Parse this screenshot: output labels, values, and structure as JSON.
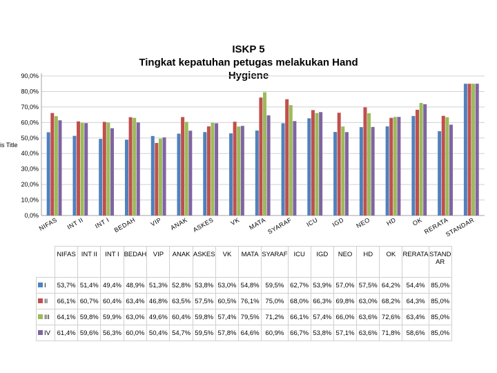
{
  "chart_data": {
    "type": "bar",
    "title_lines": [
      "ISKP 5",
      "Tingkat kepatuhan petugas melakukan Hand",
      "Hygiene"
    ],
    "ylabel_visible_fragment": "is Title",
    "yticks": [
      "0,0%",
      "10,0%",
      "20,0%",
      "30,0%",
      "40,0%",
      "50,0%",
      "60,0%",
      "70,0%",
      "80,0%",
      "90,0%"
    ],
    "ylim": [
      0,
      90
    ],
    "categories": [
      "NIFAS",
      "INT II",
      "INT I",
      "BEDAH",
      "VIP",
      "ANAK",
      "ASKES",
      "VK",
      "MATA",
      "SYARAF",
      "ICU",
      "IGD",
      "NEO",
      "HD",
      "OK",
      "RERATA",
      "STANDAR"
    ],
    "table_headers": [
      "NIFAS",
      "INT II",
      "INT I",
      "BEDAH",
      "VIP",
      "ANAK",
      "ASKES",
      "VK",
      "MATA",
      "SYARAF",
      "ICU",
      "IGD",
      "NEO",
      "HD",
      "OK",
      "RERATA",
      "STAND AR"
    ],
    "axis_labels": [
      "NIFAS",
      "INT II",
      "INT I",
      "BEDAH",
      "VIP",
      "ANAK",
      "ASKES",
      "VK",
      "MATA",
      "SYARAF",
      "ICU",
      "IGD",
      "NEO",
      "HD",
      "OK",
      "RERATA",
      "STANDAR"
    ],
    "series": [
      {
        "name": "I",
        "color": "#4f81bd",
        "values": [
          53.7,
          51.4,
          49.4,
          48.9,
          51.3,
          52.8,
          53.8,
          53.0,
          54.8,
          59.5,
          62.7,
          53.9,
          57.0,
          57.5,
          64.2,
          54.4,
          85.0
        ],
        "labels": [
          "53,7%",
          "51,4%",
          "49,4%",
          "48,9%",
          "51,3%",
          "52,8%",
          "53,8%",
          "53,0%",
          "54,8%",
          "59,5%",
          "62,7%",
          "53,9%",
          "57,0%",
          "57,5%",
          "64,2%",
          "54,4%",
          "85,0%"
        ]
      },
      {
        "name": "II",
        "color": "#c0504d",
        "values": [
          66.1,
          60.7,
          60.4,
          63.4,
          46.8,
          63.5,
          57.5,
          60.5,
          76.1,
          75.0,
          68.0,
          66.3,
          69.8,
          63.0,
          68.2,
          64.3,
          85.0
        ],
        "labels": [
          "66,1%",
          "60,7%",
          "60,4%",
          "63,4%",
          "46,8%",
          "63,5%",
          "57,5%",
          "60,5%",
          "76,1%",
          "75,0%",
          "68,0%",
          "66,3%",
          "69,8%",
          "63,0%",
          "68,2%",
          "64,3%",
          "85,0%"
        ]
      },
      {
        "name": "III",
        "color": "#9bbb59",
        "values": [
          64.1,
          59.8,
          59.9,
          63.0,
          49.6,
          60.4,
          59.8,
          57.4,
          79.5,
          71.2,
          66.1,
          57.4,
          66.0,
          63.6,
          72.6,
          63.4,
          85.0
        ],
        "labels": [
          "64,1%",
          "59,8%",
          "59,9%",
          "63,0%",
          "49,6%",
          "60,4%",
          "59,8%",
          "57,4%",
          "79,5%",
          "71,2%",
          "66,1%",
          "57,4%",
          "66,0%",
          "63,6%",
          "72,6%",
          "63,4%",
          "85,0%"
        ]
      },
      {
        "name": "IV",
        "color": "#8064a2",
        "values": [
          61.4,
          59.6,
          56.3,
          60.0,
          50.4,
          54.7,
          59.5,
          57.8,
          64.6,
          60.9,
          66.7,
          53.8,
          57.1,
          63.6,
          71.8,
          58.6,
          85.0
        ],
        "labels": [
          "61,4%",
          "59,6%",
          "56,3%",
          "60,0%",
          "50,4%",
          "54,7%",
          "59,5%",
          "57,8%",
          "64,6%",
          "60,9%",
          "66,7%",
          "53,8%",
          "57,1%",
          "63,6%",
          "71,8%",
          "58,6%",
          "85,0%"
        ]
      }
    ],
    "grid": true,
    "legend": "data-table"
  }
}
